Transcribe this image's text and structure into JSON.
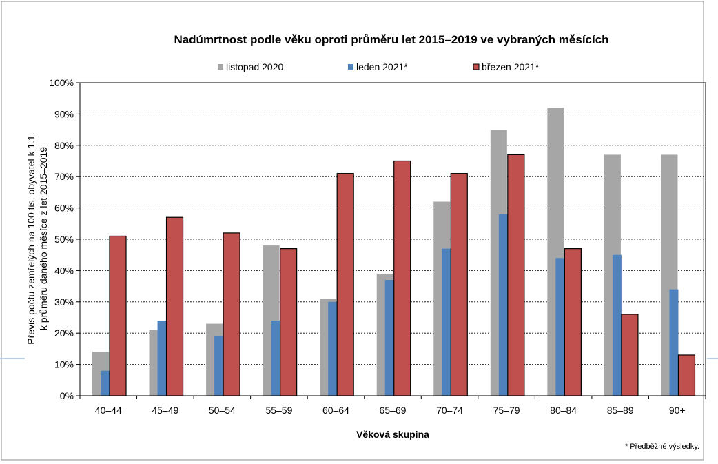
{
  "chart_data": {
    "type": "bar",
    "title": "Nadúmrtnost podle věku oproti průměru let 2015–2019 ve vybraných měsících",
    "xlabel": "Věková skupina",
    "ylabel_lines": [
      "Převis počtu zemřelých na 100 tis. obyvatel k 1.1.",
      "k průměru daného měsíce z let 2015–2019"
    ],
    "ylim": [
      0,
      100
    ],
    "yticks": [
      "0%",
      "10%",
      "20%",
      "30%",
      "40%",
      "50%",
      "60%",
      "70%",
      "80%",
      "90%",
      "100%"
    ],
    "grid": true,
    "legend_position": "top",
    "categories": [
      "40–44",
      "45–49",
      "50–54",
      "55–59",
      "60–64",
      "65–69",
      "70–74",
      "75–79",
      "80–84",
      "85–89",
      "90+"
    ],
    "series": [
      {
        "name": "listopad 2020",
        "color": "#a6a6a6",
        "values": [
          14,
          21,
          23,
          48,
          31,
          39,
          62,
          85,
          92,
          77,
          77
        ]
      },
      {
        "name": "leden 2021*",
        "color": "#4f81bd",
        "values": [
          8,
          24,
          19,
          24,
          30,
          37,
          47,
          58,
          44,
          45,
          34
        ]
      },
      {
        "name": "březen 2021*",
        "color": "#c0504d",
        "values": [
          51,
          57,
          52,
          47,
          71,
          75,
          71,
          77,
          47,
          26,
          13
        ]
      }
    ],
    "footnote": "* Předběžné výsledky."
  }
}
